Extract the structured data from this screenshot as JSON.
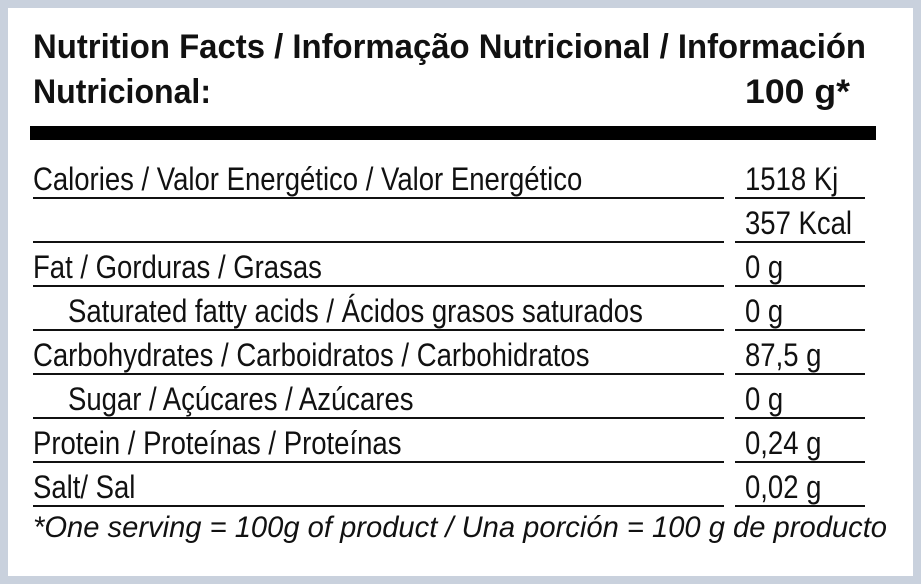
{
  "header": {
    "title_lines": [
      "Nutrition Facts / Informação Nutricional / Información",
      "Nutricional:"
    ],
    "serving": "100 g*"
  },
  "table": {
    "rows": [
      {
        "label": "Calories / Valor Energético / Valor Energético",
        "values": [
          "1518 Kj",
          "357 Kcal"
        ],
        "indent": false
      },
      {
        "label": "Fat / Gorduras / Grasas",
        "values": [
          "0 g"
        ],
        "indent": false
      },
      {
        "label": "Saturated fatty acids / Ácidos grasos saturados",
        "values": [
          "0 g"
        ],
        "indent": true
      },
      {
        "label": "Carbohydrates / Carboidratos / Carbohidratos",
        "values": [
          "87,5 g"
        ],
        "indent": false
      },
      {
        "label": "Sugar / Açúcares / Azúcares",
        "values": [
          "0 g"
        ],
        "indent": true
      },
      {
        "label": "Protein / Proteínas / Proteínas",
        "values": [
          "0,24 g"
        ],
        "indent": false
      },
      {
        "label": "Salt/ Sal",
        "values": [
          "0,02 g"
        ],
        "indent": false
      }
    ]
  },
  "footnote": "*One serving = 100g of product / Una porción = 100 g de producto"
}
